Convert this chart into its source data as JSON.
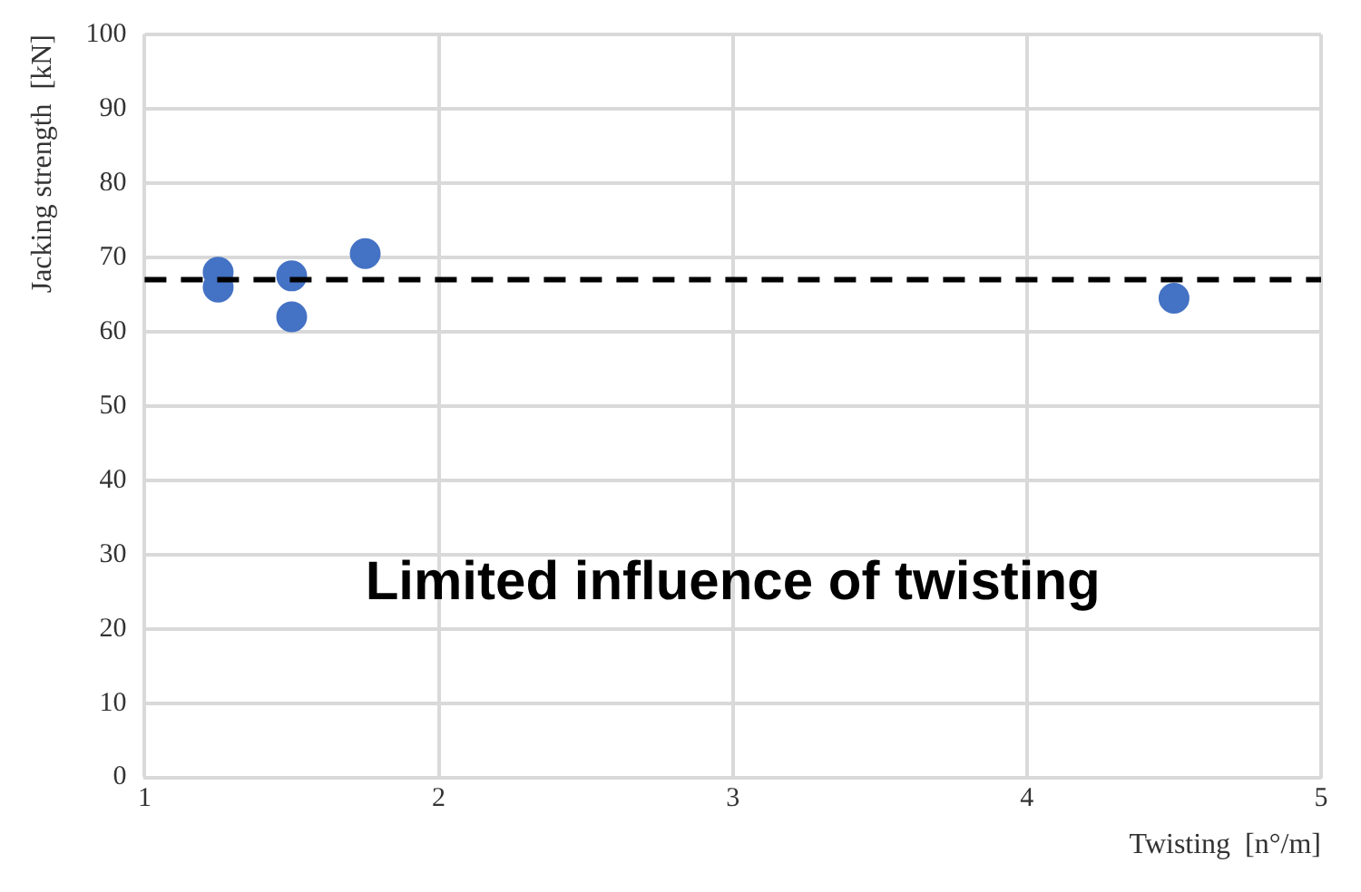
{
  "chart_data": {
    "type": "scatter",
    "xlabel": "Twisting  [n°/m]",
    "ylabel": "Jacking strength  [kN]",
    "x": [
      1.25,
      1.25,
      1.5,
      1.5,
      1.75,
      4.5
    ],
    "series": [
      {
        "color": "#4472c4",
        "values": [
          68,
          66,
          67.5,
          62,
          70.5,
          64.5
        ]
      }
    ],
    "xlim": [
      1,
      5
    ],
    "xticks": [
      1,
      2,
      3,
      4,
      5
    ],
    "ylim": [
      0,
      100
    ],
    "yticks": [
      0,
      10,
      20,
      30,
      40,
      50,
      60,
      70,
      80,
      90,
      100
    ],
    "grid": true,
    "legend": false,
    "marker": "circle",
    "ref_lines": [
      {
        "axis": "y",
        "value": 67,
        "color": "#000000",
        "line_style": "dashed"
      }
    ],
    "annotations": [
      "Limited influence of twisting"
    ]
  }
}
